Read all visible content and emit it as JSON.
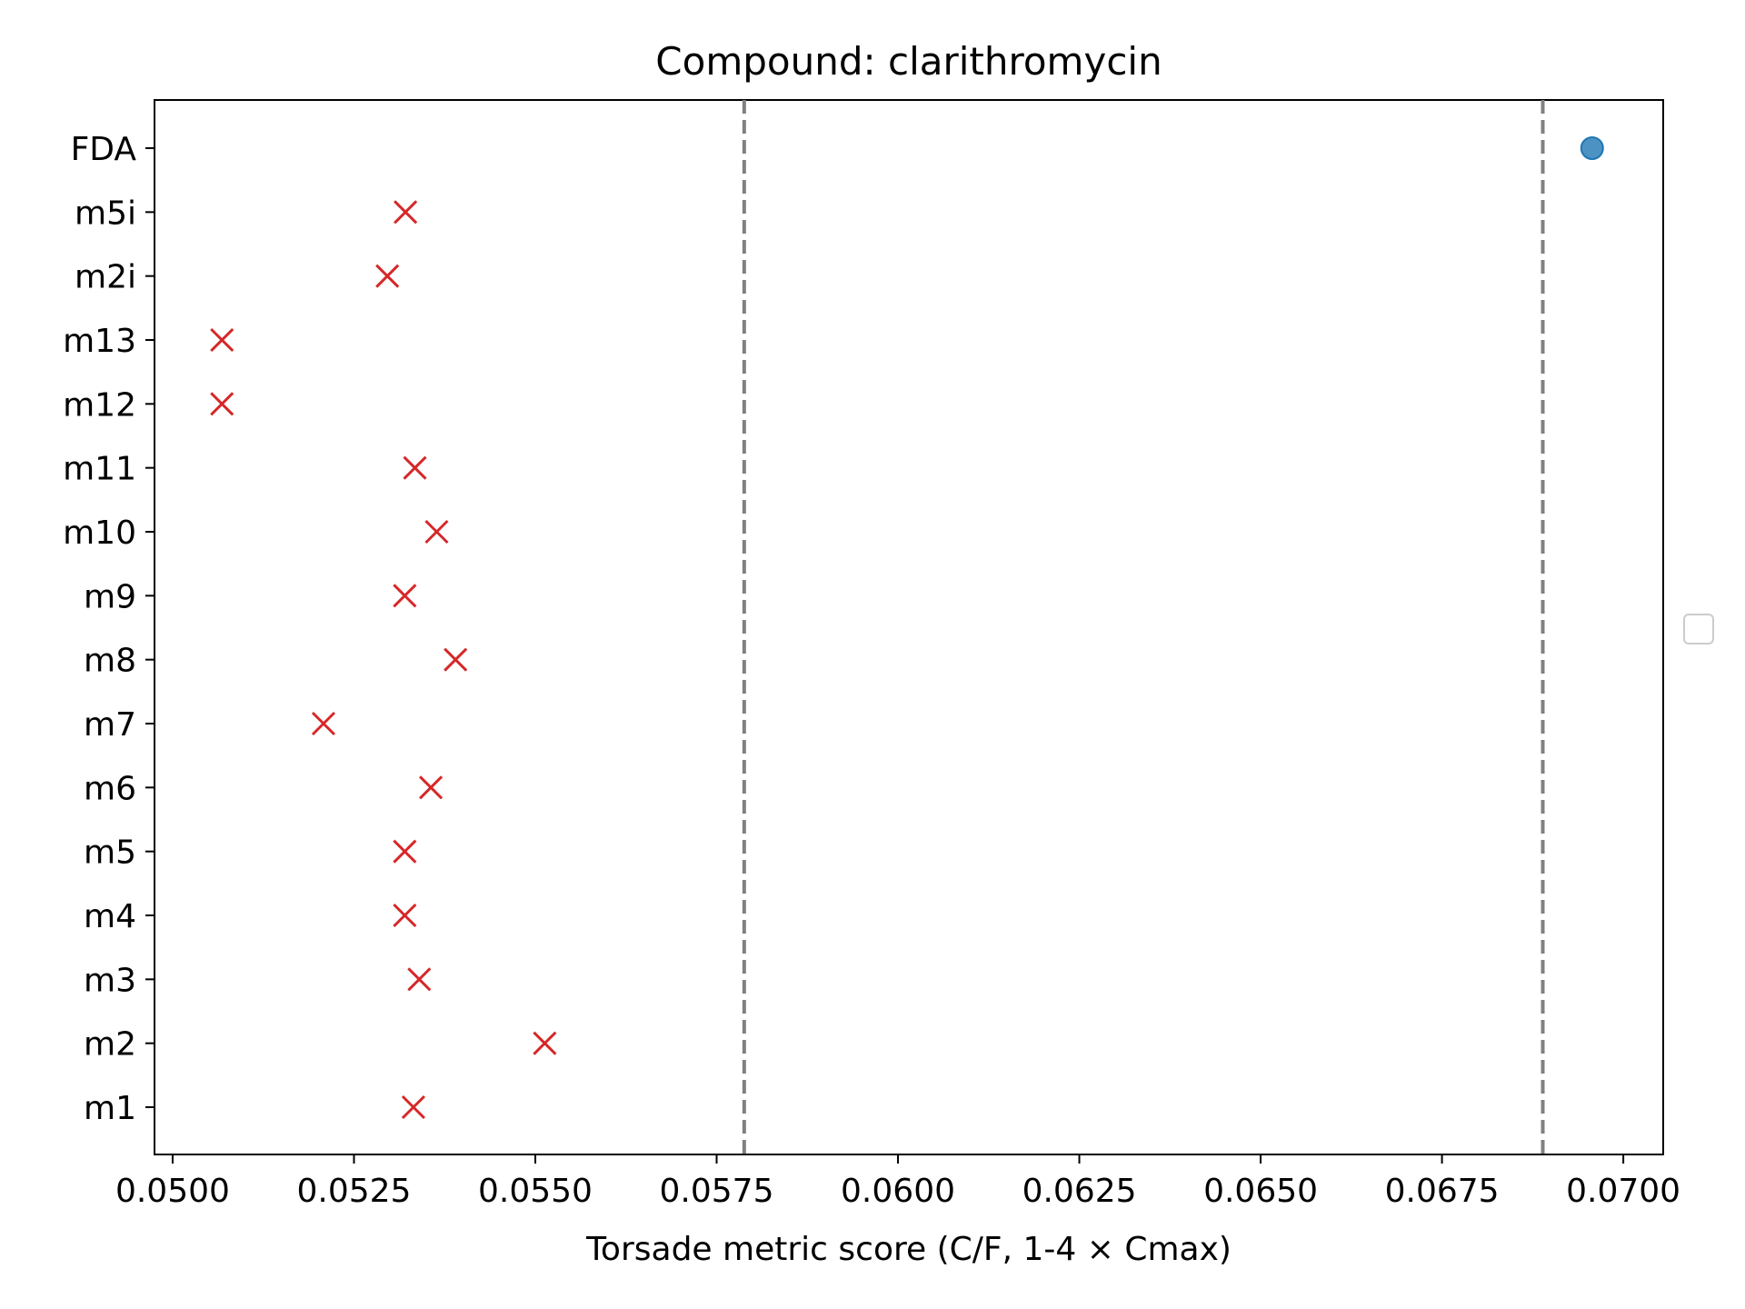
{
  "chart_data": {
    "type": "scatter",
    "title": "Compound: clarithromycin",
    "xlabel": "Torsade metric score (C/F, 1-4 × Cmax)",
    "ylabel": "",
    "xlim": [
      0.04975,
      0.07055
    ],
    "x_ticks": [
      "0.0500",
      "0.0525",
      "0.0550",
      "0.0575",
      "0.0600",
      "0.0625",
      "0.0650",
      "0.0675",
      "0.0700"
    ],
    "x_tick_values": [
      0.05,
      0.0525,
      0.055,
      0.0575,
      0.06,
      0.0625,
      0.065,
      0.0675,
      0.07
    ],
    "categories": [
      "m1",
      "m2",
      "m3",
      "m4",
      "m5",
      "m6",
      "m7",
      "m8",
      "m9",
      "m10",
      "m11",
      "m12",
      "m13",
      "m2i",
      "m5i",
      "FDA"
    ],
    "series": [
      {
        "marker": "x",
        "color": "#d62728",
        "points": [
          {
            "category": "m1",
            "x": 0.05332
          },
          {
            "category": "m2",
            "x": 0.05513
          },
          {
            "category": "m3",
            "x": 0.0534
          },
          {
            "category": "m4",
            "x": 0.0532
          },
          {
            "category": "m5",
            "x": 0.0532
          },
          {
            "category": "m6",
            "x": 0.05356
          },
          {
            "category": "m7",
            "x": 0.05208
          },
          {
            "category": "m8",
            "x": 0.0539
          },
          {
            "category": "m9",
            "x": 0.0532
          },
          {
            "category": "m10",
            "x": 0.05364
          },
          {
            "category": "m11",
            "x": 0.05334
          },
          {
            "category": "m12",
            "x": 0.05068
          },
          {
            "category": "m13",
            "x": 0.05068
          },
          {
            "category": "m2i",
            "x": 0.05296
          },
          {
            "category": "m5i",
            "x": 0.05321
          }
        ]
      },
      {
        "marker": "o",
        "color": "#1f77b4",
        "points": [
          {
            "category": "FDA",
            "x": 0.06957
          }
        ]
      }
    ],
    "reference_lines": [
      {
        "x": 0.05788,
        "style": "dashed",
        "color": "#808080"
      },
      {
        "x": 0.06889,
        "style": "dashed",
        "color": "#808080"
      }
    ],
    "legend": {
      "placement": "center-right-outside",
      "entries": []
    },
    "grid": false
  }
}
